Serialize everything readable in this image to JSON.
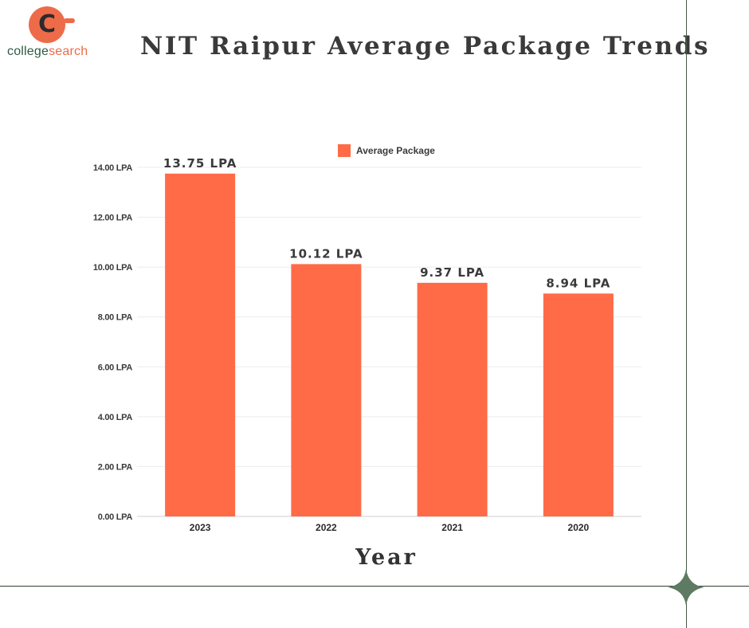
{
  "brand": {
    "name_part1": "college",
    "name_part2": "search",
    "logo_letter": "C",
    "accent": "#ee6b49",
    "dark": "#2e5a46"
  },
  "title": "NIT Raipur Average Package Trends",
  "chart_data": {
    "type": "bar",
    "title": "NIT Raipur Average Package Trends",
    "xlabel": "Year",
    "ylabel": "",
    "categories": [
      "2023",
      "2022",
      "2021",
      "2020"
    ],
    "series": [
      {
        "name": "Average Package",
        "values": [
          13.75,
          10.12,
          9.37,
          8.94
        ],
        "color": "#ff6b47"
      }
    ],
    "data_labels": [
      "13.75 LPA",
      "10.12 LPA",
      "9.37 LPA",
      "8.94 LPA"
    ],
    "yticks": [
      "0.00 LPA",
      "2.00 LPA",
      "4.00 LPA",
      "6.00 LPA",
      "8.00 LPA",
      "10.00 LPA",
      "12.00 LPA",
      "14.00 LPA"
    ],
    "ylim": [
      0,
      14
    ],
    "grid": true,
    "legend_position": "top-center"
  },
  "decor": {
    "star_icon": "four-point-star-icon",
    "star_color": "#5e7a63"
  }
}
